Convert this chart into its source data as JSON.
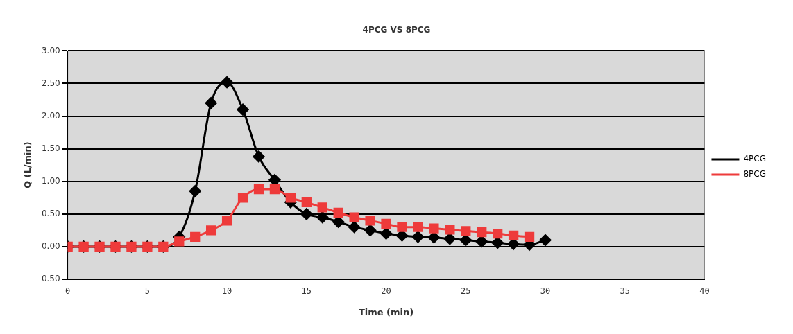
{
  "chart_data": {
    "type": "line",
    "title": "4PCG VS 8PCG",
    "xlabel": "Time (min)",
    "ylabel": "Q (L/min)",
    "xlim": [
      0,
      40
    ],
    "xticks": [
      0,
      5,
      10,
      15,
      20,
      25,
      30,
      35,
      40
    ],
    "ylim": [
      -0.5,
      3
    ],
    "yticks": [
      {
        "value": -0.5,
        "label": "-0.50"
      },
      {
        "value": 0,
        "label": "0.00"
      },
      {
        "value": 0.5,
        "label": "0.50"
      },
      {
        "value": 1,
        "label": "1.00"
      },
      {
        "value": 1.5,
        "label": "1.50"
      },
      {
        "value": 2,
        "label": "2.00"
      },
      {
        "value": 2.5,
        "label": "2.50"
      },
      {
        "value": 3,
        "label": "3.00"
      }
    ],
    "grid": "y",
    "legend": "right",
    "line_style": "solid",
    "series": [
      {
        "name": "4PCG",
        "color": "#000000",
        "marker": "diamond",
        "x": [
          0,
          1,
          2,
          3,
          4,
          5,
          6,
          7,
          8,
          9,
          10,
          11,
          12,
          13,
          14,
          15,
          16,
          17,
          18,
          19,
          20,
          21,
          22,
          23,
          24,
          25,
          26,
          27,
          28,
          29,
          30
        ],
        "values": [
          0,
          0,
          0,
          0,
          0,
          0,
          0,
          0.15,
          0.85,
          2.2,
          2.52,
          2.1,
          1.38,
          1.02,
          0.68,
          0.5,
          0.45,
          0.38,
          0.3,
          0.25,
          0.2,
          0.17,
          0.15,
          0.14,
          0.12,
          0.1,
          0.08,
          0.06,
          0.04,
          0.03,
          0.1
        ]
      },
      {
        "name": "8PCG",
        "color": "#ee3b3b",
        "marker": "square",
        "x": [
          0,
          1,
          2,
          3,
          4,
          5,
          6,
          7,
          8,
          9,
          10,
          11,
          12,
          13,
          14,
          15,
          16,
          17,
          18,
          19,
          20,
          21,
          22,
          23,
          24,
          25,
          26,
          27,
          28,
          29
        ],
        "values": [
          0,
          0,
          0,
          0,
          0,
          0,
          0,
          0.08,
          0.15,
          0.25,
          0.4,
          0.75,
          0.88,
          0.88,
          0.75,
          0.68,
          0.6,
          0.52,
          0.45,
          0.4,
          0.35,
          0.3,
          0.3,
          0.28,
          0.26,
          0.24,
          0.22,
          0.2,
          0.17,
          0.15
        ]
      }
    ]
  }
}
